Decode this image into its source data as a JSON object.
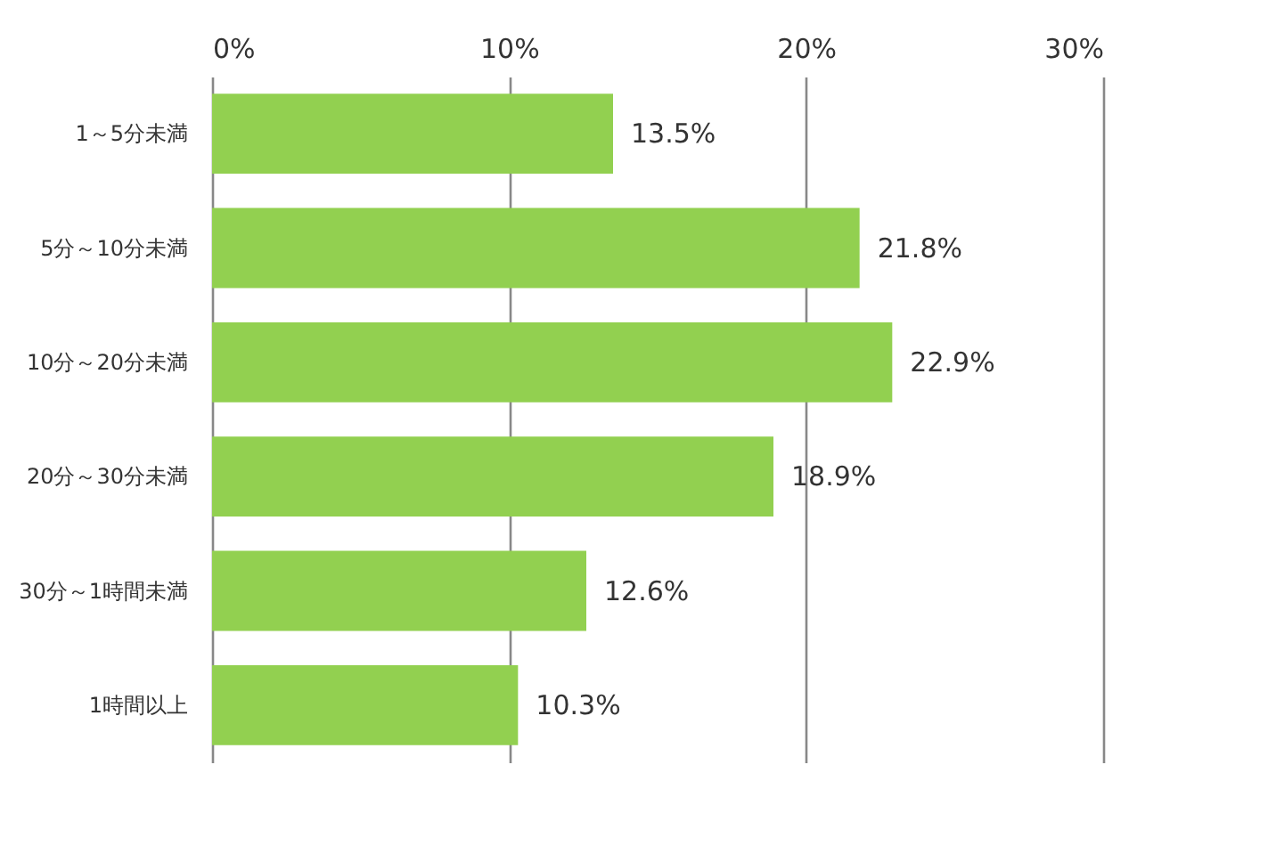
{
  "chart_data": {
    "type": "bar",
    "orientation": "horizontal",
    "categories": [
      "1～5分未満",
      "5分～10分未満",
      "10分～20分未満",
      "20分～30分未満",
      "30分～1時間未満",
      "1時間以上"
    ],
    "values": [
      13.5,
      21.8,
      22.9,
      18.9,
      12.6,
      10.3
    ],
    "value_labels": [
      "13.5%",
      "21.8%",
      "22.9%",
      "18.9%",
      "12.6%",
      "10.3%"
    ],
    "color": "#92d050",
    "xlim": [
      0,
      30
    ],
    "xticks": [
      {
        "value": 0,
        "label": "0%"
      },
      {
        "value": 10,
        "label": "10%"
      },
      {
        "value": 20,
        "label": "20%"
      },
      {
        "value": 30,
        "label": "30%"
      }
    ],
    "grid": true
  }
}
